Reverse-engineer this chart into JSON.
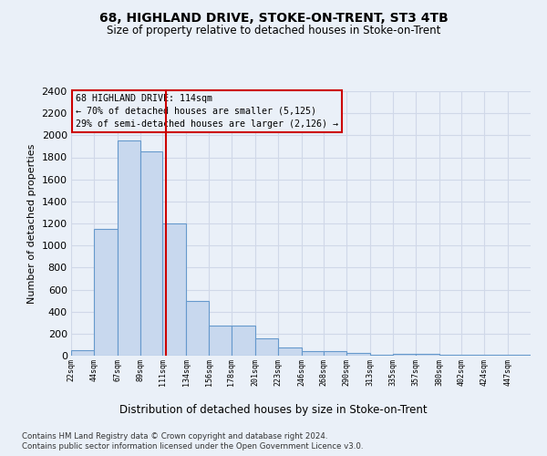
{
  "title1": "68, HIGHLAND DRIVE, STOKE-ON-TRENT, ST3 4TB",
  "title2": "Size of property relative to detached houses in Stoke-on-Trent",
  "xlabel": "Distribution of detached houses by size in Stoke-on-Trent",
  "ylabel": "Number of detached properties",
  "bin_edges": [
    22,
    44,
    67,
    89,
    111,
    134,
    156,
    178,
    201,
    223,
    246,
    268,
    290,
    313,
    335,
    357,
    380,
    402,
    424,
    447,
    469
  ],
  "counts": [
    50,
    1150,
    1950,
    1850,
    1200,
    500,
    270,
    270,
    155,
    75,
    45,
    45,
    25,
    10,
    20,
    20,
    8,
    5,
    5,
    5
  ],
  "bar_color": "#c8d8ee",
  "bar_edge_color": "#6699cc",
  "property_size": 114,
  "annotation_line1": "68 HIGHLAND DRIVE: 114sqm",
  "annotation_line2": "← 70% of detached houses are smaller (5,125)",
  "annotation_line3": "29% of semi-detached houses are larger (2,126) →",
  "footnote1": "Contains HM Land Registry data © Crown copyright and database right 2024.",
  "footnote2": "Contains public sector information licensed under the Open Government Licence v3.0.",
  "ylim": [
    0,
    2400
  ],
  "yticks": [
    0,
    200,
    400,
    600,
    800,
    1000,
    1200,
    1400,
    1600,
    1800,
    2000,
    2200,
    2400
  ],
  "bg_color": "#eaf0f8",
  "grid_color": "#d0d8e8",
  "ann_box_color": "#cc0000",
  "vline_color": "#cc0000"
}
